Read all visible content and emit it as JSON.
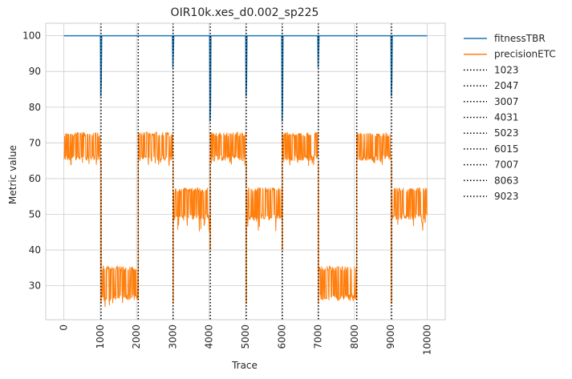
{
  "chart_data": {
    "type": "line",
    "title": "OIR10k.xes_d0.002_sp225",
    "xlabel": "Trace",
    "ylabel": "Metric value",
    "xlim": [
      -500,
      10500
    ],
    "ylim": [
      20.5,
      103.5
    ],
    "x_ticks": [
      0,
      1000,
      2000,
      3000,
      4000,
      5000,
      6000,
      7000,
      8000,
      9000,
      10000
    ],
    "y_ticks": [
      30,
      40,
      50,
      60,
      70,
      80,
      90,
      100
    ],
    "grid": true,
    "legend_position": "outside-right",
    "series": [
      {
        "name": "fitnessTBR",
        "color": "#1f77b4",
        "baseline": 100,
        "dips": [
          {
            "x": 1023,
            "min": 83
          },
          {
            "x": 3007,
            "min": 91
          },
          {
            "x": 4031,
            "min": 76
          },
          {
            "x": 5023,
            "min": 83
          },
          {
            "x": 6015,
            "min": 76
          },
          {
            "x": 7007,
            "min": 91
          },
          {
            "x": 9023,
            "min": 83
          }
        ]
      },
      {
        "name": "precisionETC",
        "color": "#ff7f0e",
        "segments": [
          {
            "start": 0,
            "end": 1023,
            "low": 65,
            "high": 73,
            "min": 63.5
          },
          {
            "start": 1023,
            "end": 2047,
            "low": 26,
            "high": 35.5,
            "min": 24
          },
          {
            "start": 2047,
            "end": 3007,
            "low": 65,
            "high": 73,
            "min": 63.5
          },
          {
            "start": 3007,
            "end": 4031,
            "low": 48.5,
            "high": 57.5,
            "min": 45
          },
          {
            "start": 4031,
            "end": 5023,
            "low": 65,
            "high": 73,
            "min": 63.5
          },
          {
            "start": 5023,
            "end": 6015,
            "low": 48.5,
            "high": 57.5,
            "min": 45
          },
          {
            "start": 6015,
            "end": 7007,
            "low": 65,
            "high": 73,
            "min": 63.5
          },
          {
            "start": 7007,
            "end": 8063,
            "low": 26,
            "high": 35.5,
            "min": 24
          },
          {
            "start": 8063,
            "end": 9023,
            "low": 65,
            "high": 73,
            "min": 63.5
          },
          {
            "start": 9023,
            "end": 10000,
            "low": 48.5,
            "high": 57.5,
            "min": 45
          }
        ],
        "drift_spikes": [
          {
            "x": 1023,
            "value": 25
          },
          {
            "x": 3007,
            "value": 25
          },
          {
            "x": 4031,
            "value": 40
          },
          {
            "x": 5023,
            "value": 25
          },
          {
            "x": 6015,
            "value": 40
          },
          {
            "x": 7007,
            "value": 25
          },
          {
            "x": 9023,
            "value": 25
          }
        ]
      }
    ],
    "vlines": [
      {
        "name": "1023",
        "x": 1023
      },
      {
        "name": "2047",
        "x": 2047
      },
      {
        "name": "3007",
        "x": 3007
      },
      {
        "name": "4031",
        "x": 4031
      },
      {
        "name": "5023",
        "x": 5023
      },
      {
        "name": "6015",
        "x": 6015
      },
      {
        "name": "7007",
        "x": 7007
      },
      {
        "name": "8063",
        "x": 8063
      },
      {
        "name": "9023",
        "x": 9023
      }
    ],
    "vline_color": "#000000",
    "grid_color": "#cccccc"
  }
}
